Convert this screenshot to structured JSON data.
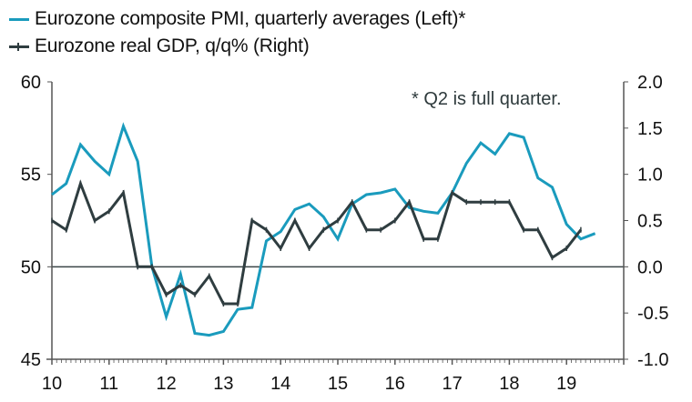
{
  "chart_data": {
    "type": "line",
    "title": "",
    "legend_position": "top-left",
    "annotation": "* Q2 is full quarter.",
    "colors": {
      "pmi": "#1a9bbd",
      "gdp": "#2f3d40",
      "axis": "#555555"
    },
    "x_tick_labels": [
      "10",
      "11",
      "12",
      "13",
      "14",
      "15",
      "16",
      "17",
      "18",
      "19"
    ],
    "x_range": [
      "2010Q1",
      "2019Q4"
    ],
    "left_axis": {
      "label": "",
      "ylim": [
        45,
        60
      ],
      "ticks": [
        "45",
        "50",
        "55",
        "60"
      ]
    },
    "right_axis": {
      "label": "",
      "ylim": [
        -1.0,
        2.0
      ],
      "ticks": [
        "-1.0",
        "-0.5",
        "0.0",
        "0.5",
        "1.0",
        "1.5",
        "2.0"
      ]
    },
    "x": [
      "2010Q1",
      "2010Q2",
      "2010Q3",
      "2010Q4",
      "2011Q1",
      "2011Q2",
      "2011Q3",
      "2011Q4",
      "2012Q1",
      "2012Q2",
      "2012Q3",
      "2012Q4",
      "2013Q1",
      "2013Q2",
      "2013Q3",
      "2013Q4",
      "2014Q1",
      "2014Q2",
      "2014Q3",
      "2014Q4",
      "2015Q1",
      "2015Q2",
      "2015Q3",
      "2015Q4",
      "2016Q1",
      "2016Q2",
      "2016Q3",
      "2016Q4",
      "2017Q1",
      "2017Q2",
      "2017Q3",
      "2017Q4",
      "2018Q1",
      "2018Q2",
      "2018Q3",
      "2018Q4",
      "2019Q1",
      "2019Q2",
      "2019Q3"
    ],
    "series": [
      {
        "name": "Eurozone composite PMI, quarterly averages (Left)*",
        "axis": "left",
        "values": [
          53.9,
          54.5,
          56.6,
          55.7,
          55.0,
          57.6,
          55.7,
          50.0,
          47.3,
          49.6,
          46.4,
          46.3,
          46.5,
          47.7,
          47.8,
          51.4,
          51.9,
          53.1,
          53.4,
          52.7,
          51.5,
          53.4,
          53.9,
          54.0,
          54.2,
          53.2,
          53.0,
          52.9,
          54.0,
          55.6,
          56.7,
          56.1,
          57.2,
          57.0,
          54.8,
          54.3,
          52.3,
          51.5,
          51.8
        ]
      },
      {
        "name": "Eurozone real GDP, q/q% (Right)",
        "axis": "right",
        "values": [
          0.5,
          0.4,
          0.9,
          0.5,
          0.6,
          0.8,
          0.0,
          0.0,
          -0.3,
          -0.2,
          -0.3,
          -0.1,
          -0.4,
          -0.4,
          0.5,
          0.4,
          0.2,
          0.5,
          0.2,
          0.4,
          0.5,
          0.7,
          0.4,
          0.4,
          0.5,
          0.7,
          0.3,
          0.3,
          0.8,
          0.7,
          0.7,
          0.7,
          0.7,
          0.4,
          0.4,
          0.1,
          0.2,
          0.4,
          null
        ]
      }
    ]
  }
}
